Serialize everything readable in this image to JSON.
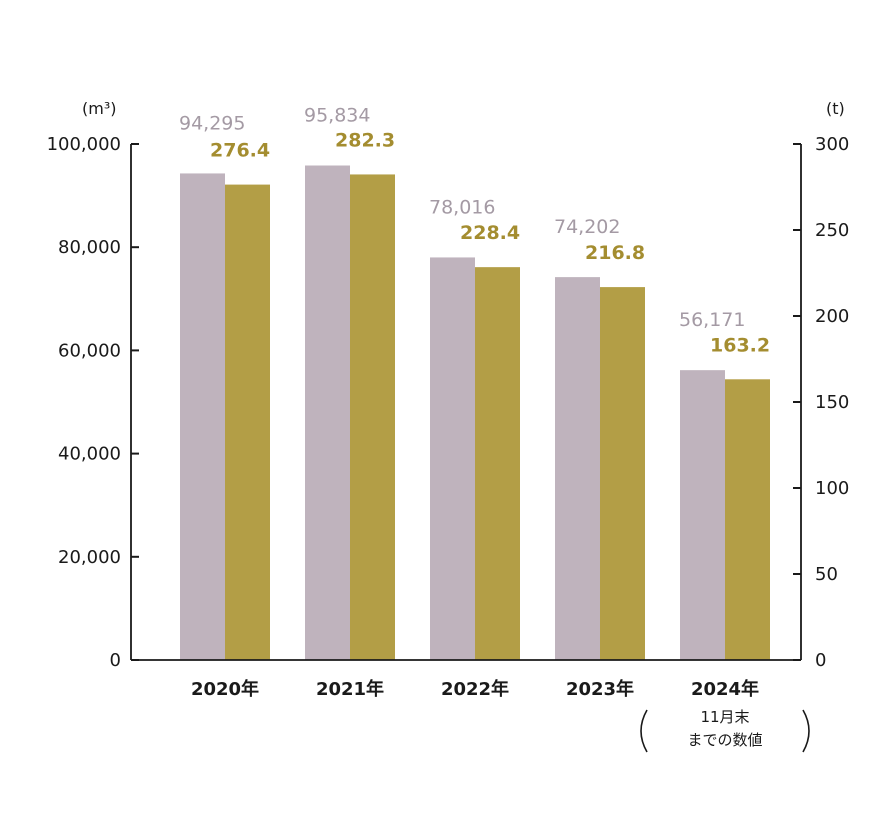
{
  "chart_data": {
    "type": "bar",
    "categories": [
      "2020年",
      "2021年",
      "2022年",
      "2023年",
      "2024年"
    ],
    "category_note": [
      "11月末",
      "までの数値"
    ],
    "series": [
      {
        "name": "volume",
        "axis": "left",
        "values": [
          94295,
          95834,
          78016,
          74202,
          56171
        ],
        "labels": [
          "94,295",
          "95,834",
          "78,016",
          "74,202",
          "56,171"
        ]
      },
      {
        "name": "weight",
        "axis": "right",
        "values": [
          276.4,
          282.3,
          228.4,
          216.8,
          163.2
        ],
        "labels": [
          "276.4",
          "282.3",
          "228.4",
          "216.8",
          "163.2"
        ]
      }
    ],
    "y_left": {
      "unit": "(m³)",
      "ylim": [
        0,
        100000
      ],
      "ticks": [
        0,
        20000,
        40000,
        60000,
        80000,
        100000
      ],
      "tick_labels": [
        "0",
        "20,000",
        "40,000",
        "60,000",
        "80,000",
        "100,000"
      ]
    },
    "y_right": {
      "unit": "(t)",
      "ylim": [
        0,
        300
      ],
      "ticks": [
        0,
        50,
        100,
        150,
        200,
        250,
        300
      ],
      "tick_labels": [
        "0",
        "50",
        "100",
        "150",
        "200",
        "250",
        "300"
      ]
    },
    "colors": {
      "volume": "#bfb3bd",
      "weight": "#b39e46",
      "volume_label": "#a49aa4",
      "weight_label": "#a48d30",
      "axis": "#1a1a1a"
    },
    "grid": false,
    "legend": "none"
  }
}
